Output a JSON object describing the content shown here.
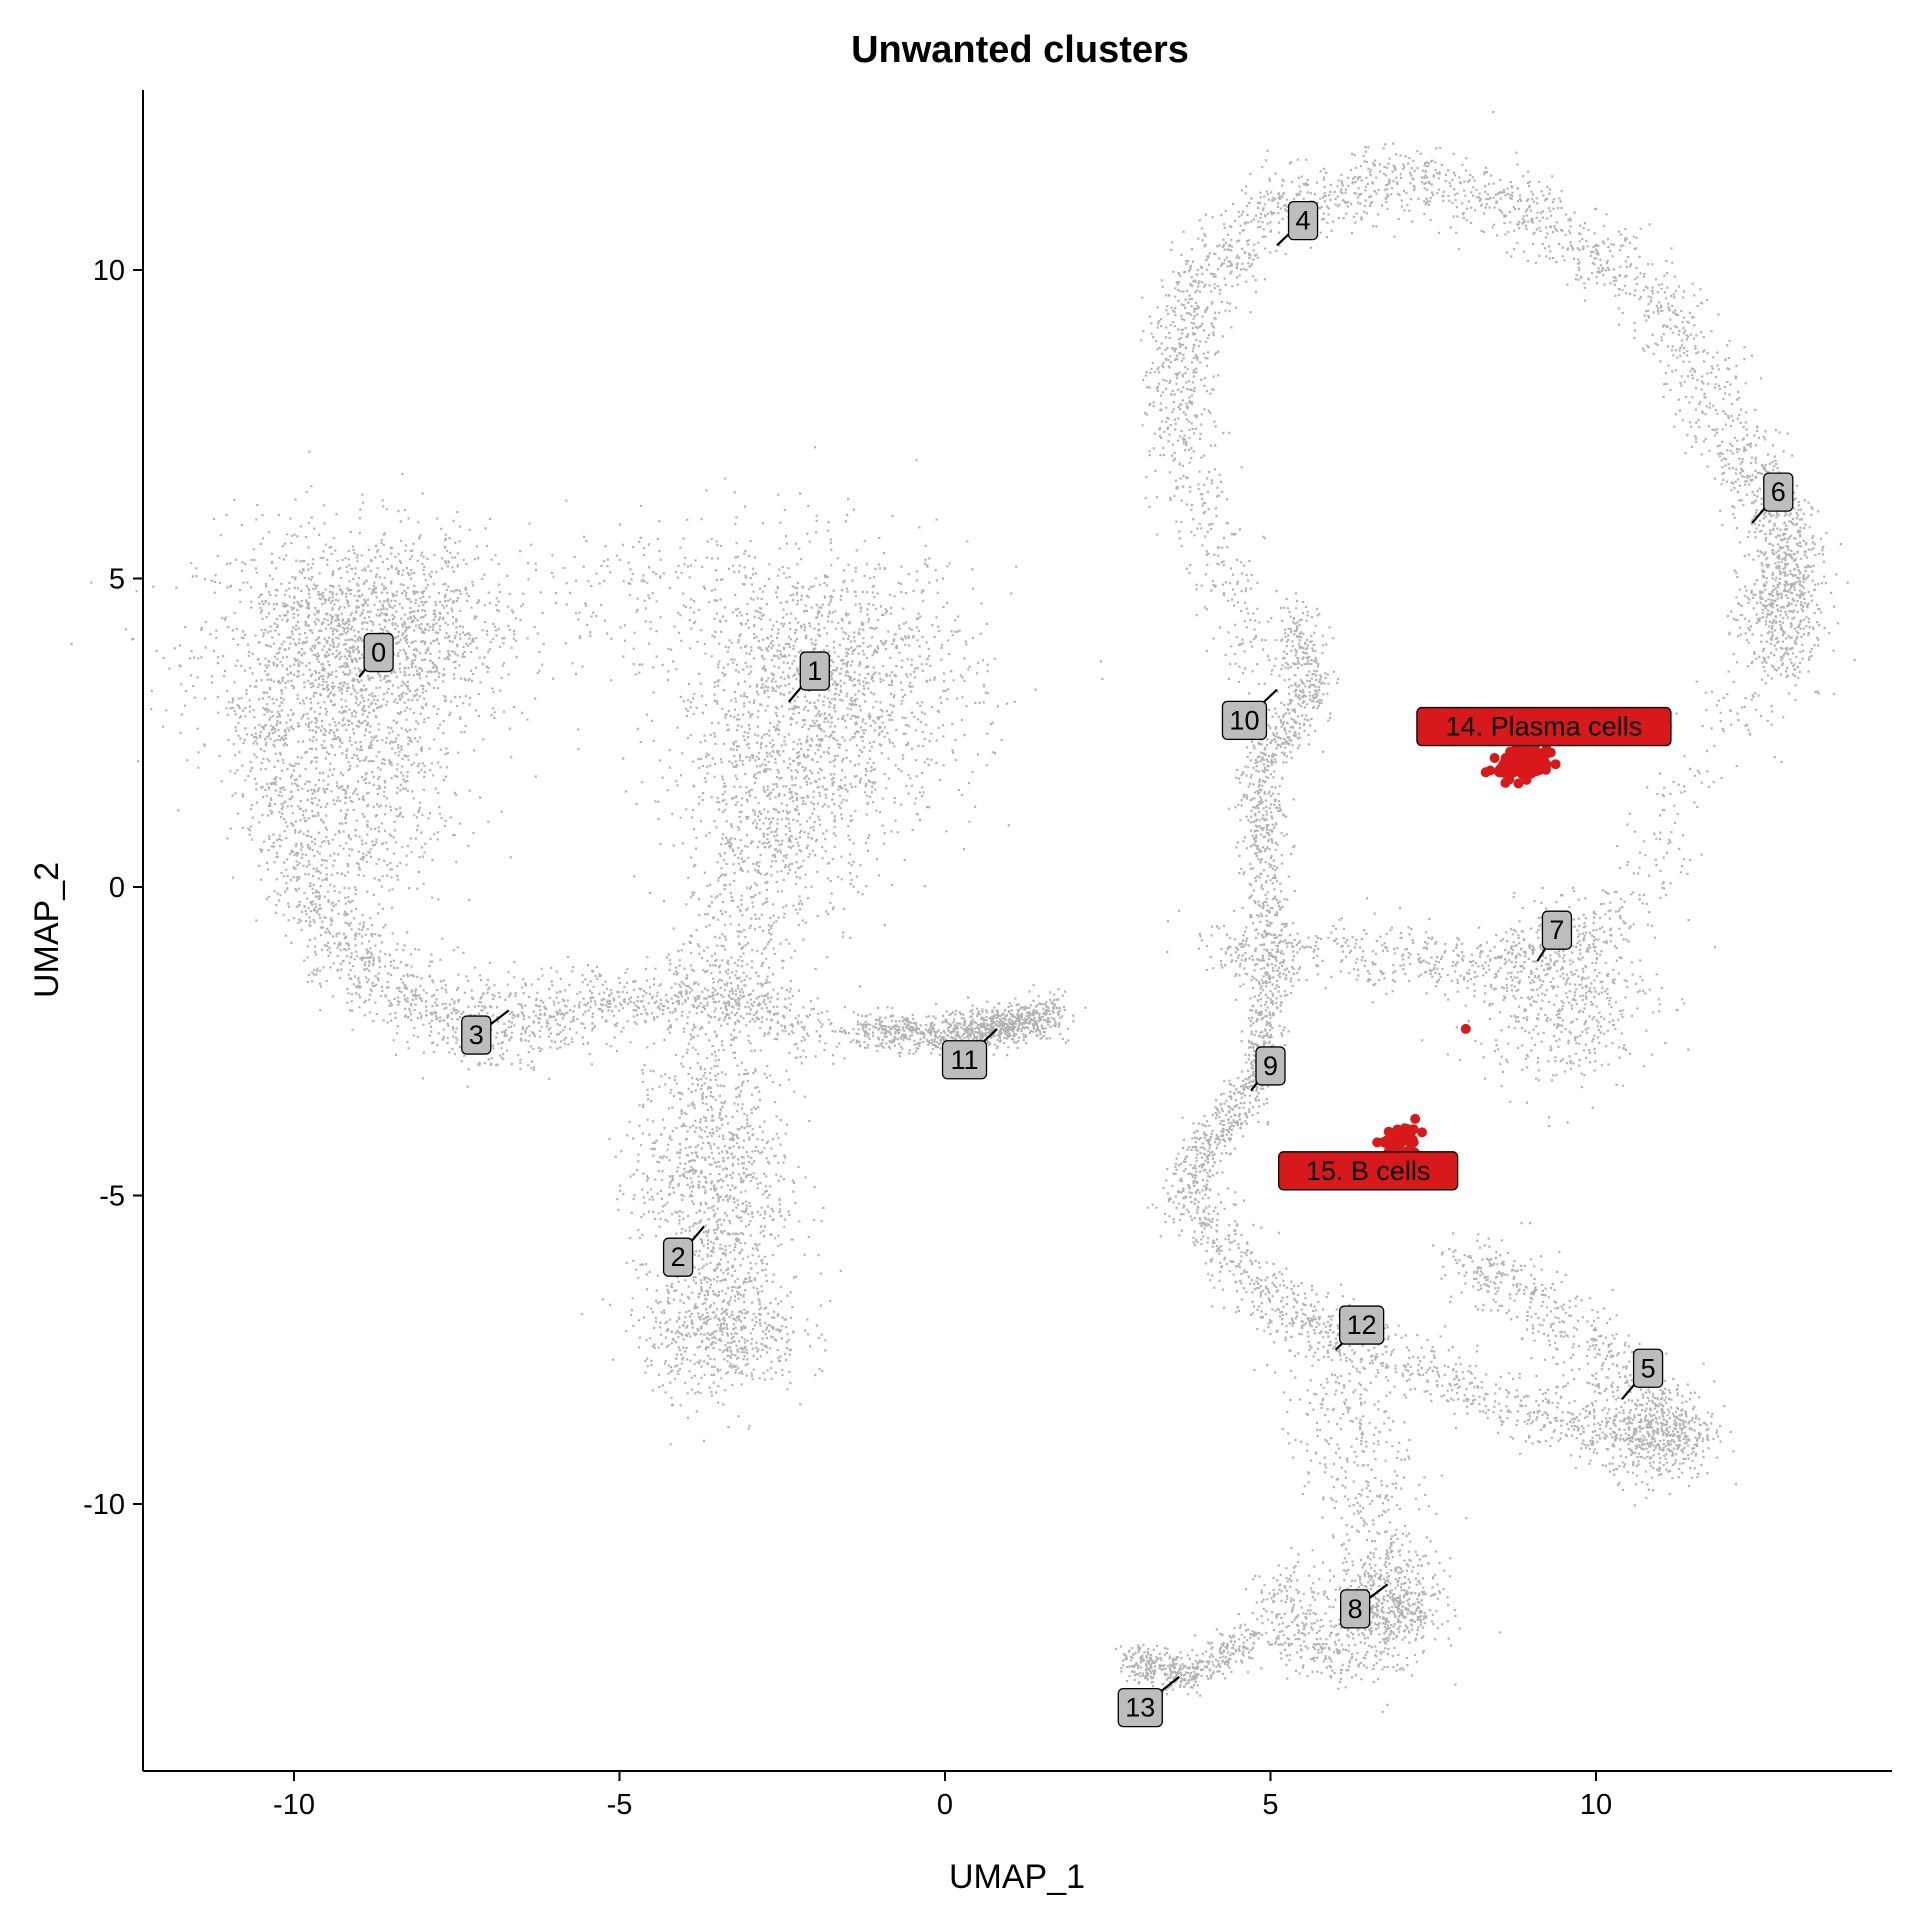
{
  "chart_data": {
    "type": "scatter",
    "title": "Unwanted clusters",
    "xlabel": "UMAP_1",
    "ylabel": "UMAP_2",
    "xlim": [
      -12.5,
      14.5
    ],
    "ylim": [
      -14.2,
      12.9
    ],
    "xticks": [
      -10,
      -5,
      0,
      5,
      10
    ],
    "yticks": [
      -10,
      -5,
      0,
      5,
      10
    ],
    "xtick_labels": [
      "-10",
      "-5",
      "0",
      "5",
      "10"
    ],
    "ytick_labels": [
      "-10",
      "-5",
      "0",
      "5",
      "10"
    ],
    "grid": false,
    "legend": "none",
    "colors": {
      "background_points": "#b3b3b3",
      "highlight": "#d7191c",
      "label_fill": "#bdbdbd"
    },
    "cluster_labels": [
      {
        "label": "0",
        "x": -8.7,
        "y": 3.8,
        "anchor_x": -9.0,
        "anchor_y": 3.4
      },
      {
        "label": "1",
        "x": -2.0,
        "y": 3.5,
        "anchor_x": -2.4,
        "anchor_y": 3.0
      },
      {
        "label": "2",
        "x": -4.1,
        "y": -6.0,
        "anchor_x": -3.7,
        "anchor_y": -5.5
      },
      {
        "label": "3",
        "x": -7.2,
        "y": -2.4,
        "anchor_x": -6.7,
        "anchor_y": -2.0
      },
      {
        "label": "4",
        "x": 5.5,
        "y": 10.8,
        "anchor_x": 5.1,
        "anchor_y": 10.4
      },
      {
        "label": "5",
        "x": 10.8,
        "y": -7.8,
        "anchor_x": 10.4,
        "anchor_y": -8.3
      },
      {
        "label": "6",
        "x": 12.8,
        "y": 6.4,
        "anchor_x": 12.4,
        "anchor_y": 5.9
      },
      {
        "label": "7",
        "x": 9.4,
        "y": -0.7,
        "anchor_x": 9.1,
        "anchor_y": -1.2
      },
      {
        "label": "8",
        "x": 6.3,
        "y": -11.7,
        "anchor_x": 6.8,
        "anchor_y": -11.3
      },
      {
        "label": "9",
        "x": 5.0,
        "y": -2.9,
        "anchor_x": 4.7,
        "anchor_y": -3.3
      },
      {
        "label": "10",
        "x": 4.6,
        "y": 2.7,
        "anchor_x": 5.1,
        "anchor_y": 3.2
      },
      {
        "label": "11",
        "x": 0.3,
        "y": -2.8,
        "anchor_x": 0.8,
        "anchor_y": -2.3
      },
      {
        "label": "12",
        "x": 6.4,
        "y": -7.1,
        "anchor_x": 6.0,
        "anchor_y": -7.5
      },
      {
        "label": "13",
        "x": 3.0,
        "y": -13.3,
        "anchor_x": 3.6,
        "anchor_y": -12.8
      }
    ],
    "highlighted": [
      {
        "label": "14. Plasma cells",
        "x": 9.2,
        "y": 2.6,
        "cells_x": 8.9,
        "cells_y": 2.0
      },
      {
        "label": "15. B cells",
        "x": 6.5,
        "y": -4.6,
        "cells_x": 7.0,
        "cells_y": -4.1
      }
    ]
  }
}
